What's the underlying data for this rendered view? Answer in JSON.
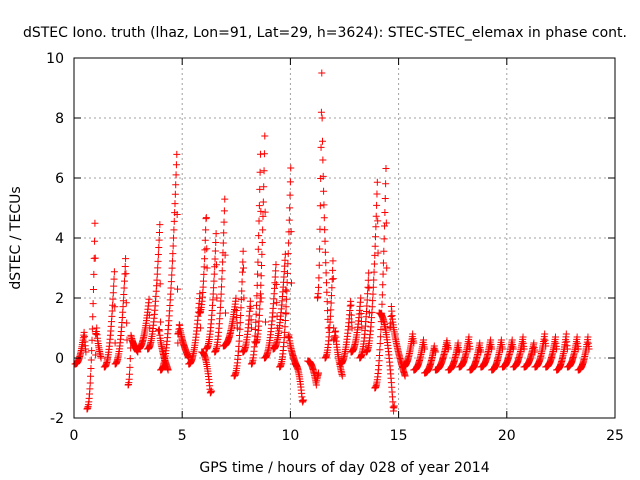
{
  "chart_data": {
    "type": "scatter",
    "title": "dSTEC Iono. truth (lhaz, Lon=91, Lat=29, h=3624): STEC-STEC_elemax in phase cont.",
    "xlabel": "GPS time / hours of day 028 of year 2014",
    "ylabel": "dSTEC  / TECUs",
    "xlim": [
      0,
      25
    ],
    "ylim": [
      -2,
      10
    ],
    "x_ticks": [
      0,
      5,
      10,
      15,
      20,
      25
    ],
    "x_tick_labels": [
      "0",
      "5",
      "10",
      "15",
      "20",
      "25"
    ],
    "y_ticks": [
      -2,
      0,
      2,
      4,
      6,
      8,
      10
    ],
    "y_tick_labels": [
      "-2",
      "0",
      "2",
      "4",
      "6",
      "8",
      "10"
    ],
    "grid": true,
    "marker": "plus",
    "marker_color": "#ff0000",
    "series": [
      {
        "arcs": [
          {
            "t0": 0.05,
            "t1": 0.55,
            "peak": 0.9,
            "peak_at": 0.85,
            "start": -0.2,
            "end": 0.2
          },
          {
            "t0": 0.6,
            "t1": 1.0,
            "peak": 5.0,
            "peak_at": 0.95,
            "start": -1.7,
            "end": 0.1
          },
          {
            "t0": 1.0,
            "t1": 1.25,
            "peak": 1.0,
            "peak_at": 0.2,
            "start": 0.8,
            "end": 0.0
          },
          {
            "t0": 1.4,
            "t1": 1.9,
            "peak": 3.0,
            "peak_at": 0.95,
            "start": -0.3,
            "end": 0.5
          },
          {
            "t0": 1.9,
            "t1": 2.45,
            "peak": 3.5,
            "peak_at": 0.9,
            "start": -0.2,
            "end": 0.6
          },
          {
            "t0": 2.5,
            "t1": 2.95,
            "peak": 0.8,
            "peak_at": 0.3,
            "start": -0.9,
            "end": 0.2
          },
          {
            "t0": 2.95,
            "t1": 3.5,
            "peak": 2.0,
            "peak_at": 0.95,
            "start": 0.3,
            "end": 1.0
          },
          {
            "t0": 3.4,
            "t1": 4.0,
            "peak": 4.5,
            "peak_at": 0.95,
            "start": 0.3,
            "end": 1.2
          },
          {
            "t0": 3.9,
            "t1": 4.35,
            "peak": 1.0,
            "peak_at": 0.1,
            "start": 0.9,
            "end": -0.4
          },
          {
            "t0": 4.0,
            "t1": 4.8,
            "peak": 7.0,
            "peak_at": 0.95,
            "start": -0.4,
            "end": 0.5
          },
          {
            "t0": 4.8,
            "t1": 5.3,
            "peak": 1.2,
            "peak_at": 0.15,
            "start": 0.8,
            "end": 0.0
          },
          {
            "t0": 5.3,
            "t1": 5.85,
            "peak": 2.2,
            "peak_at": 0.95,
            "start": -0.2,
            "end": 1.0
          },
          {
            "t0": 5.8,
            "t1": 6.15,
            "peak": 5.0,
            "peak_at": 0.9,
            "start": 1.5,
            "end": 3.0
          },
          {
            "t0": 5.9,
            "t1": 6.35,
            "peak": -1.2,
            "peak_at": 0.9,
            "start": 0.2,
            "end": -1.1
          },
          {
            "t0": 6.1,
            "t1": 6.6,
            "peak": 4.3,
            "peak_at": 0.95,
            "start": 0.3,
            "end": 2.0
          },
          {
            "t0": 6.5,
            "t1": 7.0,
            "peak": 5.5,
            "peak_at": 0.95,
            "start": 0.2,
            "end": 1.5
          },
          {
            "t0": 6.9,
            "t1": 7.55,
            "peak": 2.0,
            "peak_at": 0.9,
            "start": 0.4,
            "end": 1.0
          },
          {
            "t0": 7.4,
            "t1": 7.85,
            "peak": 3.8,
            "peak_at": 0.95,
            "start": -0.6,
            "end": 2.0
          },
          {
            "t0": 7.8,
            "t1": 8.2,
            "peak": 2.0,
            "peak_at": 0.9,
            "start": 0.2,
            "end": 1.0
          },
          {
            "t0": 8.2,
            "t1": 8.65,
            "peak": 7.2,
            "peak_at": 0.95,
            "start": -0.2,
            "end": 2.0
          },
          {
            "t0": 8.4,
            "t1": 8.85,
            "peak": 7.8,
            "peak_at": 0.95,
            "start": 0.5,
            "end": 1.2
          },
          {
            "t0": 8.8,
            "t1": 9.4,
            "peak": 3.2,
            "peak_at": 0.9,
            "start": 0.0,
            "end": 1.0
          },
          {
            "t0": 9.2,
            "t1": 9.8,
            "peak": 3.5,
            "peak_at": 0.95,
            "start": 0.3,
            "end": 1.5
          },
          {
            "t0": 9.5,
            "t1": 10.05,
            "peak": 6.5,
            "peak_at": 0.95,
            "start": -0.3,
            "end": 2.5
          },
          {
            "t0": 9.9,
            "t1": 10.3,
            "peak": 0.8,
            "peak_at": 0.1,
            "start": 0.7,
            "end": -0.3
          },
          {
            "t0": 10.2,
            "t1": 10.6,
            "peak": -1.5,
            "peak_at": 0.9,
            "start": -0.2,
            "end": -1.4
          },
          {
            "t0": 10.8,
            "t1": 11.3,
            "peak": -0.9,
            "peak_at": 0.8,
            "start": -0.1,
            "end": -0.5
          },
          {
            "t0": 11.25,
            "t1": 11.75,
            "peak": 9.5,
            "peak_at": 0.4,
            "start": 2.0,
            "end": 1.0
          },
          {
            "t0": 11.6,
            "t1": 12.0,
            "peak": 3.5,
            "peak_at": 0.95,
            "start": 0.0,
            "end": 1.0
          },
          {
            "t0": 12.0,
            "t1": 12.4,
            "peak": 1.0,
            "peak_at": 0.2,
            "start": 0.6,
            "end": -0.6
          },
          {
            "t0": 12.3,
            "t1": 12.85,
            "peak": 2.0,
            "peak_at": 0.9,
            "start": -0.2,
            "end": 1.0
          },
          {
            "t0": 12.8,
            "t1": 13.3,
            "peak": 2.0,
            "peak_at": 0.9,
            "start": 0.2,
            "end": 1.0
          },
          {
            "t0": 13.2,
            "t1": 13.65,
            "peak": 3.0,
            "peak_at": 0.95,
            "start": 0.0,
            "end": 1.5
          },
          {
            "t0": 13.5,
            "t1": 14.05,
            "peak": 6.0,
            "peak_at": 0.95,
            "start": 0.2,
            "end": 3.5
          },
          {
            "t0": 13.9,
            "t1": 14.45,
            "peak": 6.5,
            "peak_at": 0.95,
            "start": -1.0,
            "end": 3.0
          },
          {
            "t0": 14.1,
            "t1": 14.8,
            "peak": -1.8,
            "peak_at": 0.95,
            "start": 1.5,
            "end": -1.6
          },
          {
            "t0": 14.6,
            "t1": 15.3,
            "peak": 1.8,
            "peak_at": 0.1,
            "start": 1.0,
            "end": -0.6
          },
          {
            "t0": 15.2,
            "t1": 15.7,
            "peak": 0.8,
            "peak_at": 0.9,
            "start": -0.3,
            "end": 0.5
          },
          {
            "t0": 15.7,
            "t1": 16.2,
            "peak": 0.6,
            "peak_at": 0.9,
            "start": -0.4,
            "end": 0.3
          },
          {
            "t0": 16.2,
            "t1": 16.7,
            "peak": 0.4,
            "peak_at": 0.9,
            "start": -0.5,
            "end": 0.2
          },
          {
            "t0": 16.7,
            "t1": 17.3,
            "peak": 0.6,
            "peak_at": 0.9,
            "start": -0.4,
            "end": 0.3
          },
          {
            "t0": 17.3,
            "t1": 17.8,
            "peak": 0.5,
            "peak_at": 0.9,
            "start": -0.4,
            "end": 0.2
          },
          {
            "t0": 17.8,
            "t1": 18.3,
            "peak": 0.7,
            "peak_at": 0.9,
            "start": -0.3,
            "end": 0.3
          },
          {
            "t0": 18.3,
            "t1": 18.8,
            "peak": 0.5,
            "peak_at": 0.9,
            "start": -0.4,
            "end": 0.2
          },
          {
            "t0": 18.8,
            "t1": 19.3,
            "peak": 0.6,
            "peak_at": 0.9,
            "start": -0.3,
            "end": 0.3
          },
          {
            "t0": 19.3,
            "t1": 19.8,
            "peak": 0.6,
            "peak_at": 0.9,
            "start": -0.4,
            "end": 0.3
          },
          {
            "t0": 19.8,
            "t1": 20.3,
            "peak": 0.6,
            "peak_at": 0.9,
            "start": -0.3,
            "end": 0.3
          },
          {
            "t0": 20.3,
            "t1": 20.8,
            "peak": 0.7,
            "peak_at": 0.9,
            "start": -0.3,
            "end": 0.3
          },
          {
            "t0": 20.8,
            "t1": 21.3,
            "peak": 0.5,
            "peak_at": 0.9,
            "start": -0.3,
            "end": 0.2
          },
          {
            "t0": 21.3,
            "t1": 21.8,
            "peak": 0.8,
            "peak_at": 0.9,
            "start": -0.3,
            "end": 0.4
          },
          {
            "t0": 21.8,
            "t1": 22.3,
            "peak": 0.7,
            "peak_at": 0.9,
            "start": -0.3,
            "end": 0.3
          },
          {
            "t0": 22.3,
            "t1": 22.8,
            "peak": 0.8,
            "peak_at": 0.9,
            "start": -0.4,
            "end": 0.3
          },
          {
            "t0": 22.8,
            "t1": 23.3,
            "peak": 0.7,
            "peak_at": 0.9,
            "start": -0.3,
            "end": 0.3
          },
          {
            "t0": 23.3,
            "t1": 23.8,
            "peak": 0.7,
            "peak_at": 0.9,
            "start": -0.4,
            "end": 0.3
          }
        ]
      }
    ]
  }
}
